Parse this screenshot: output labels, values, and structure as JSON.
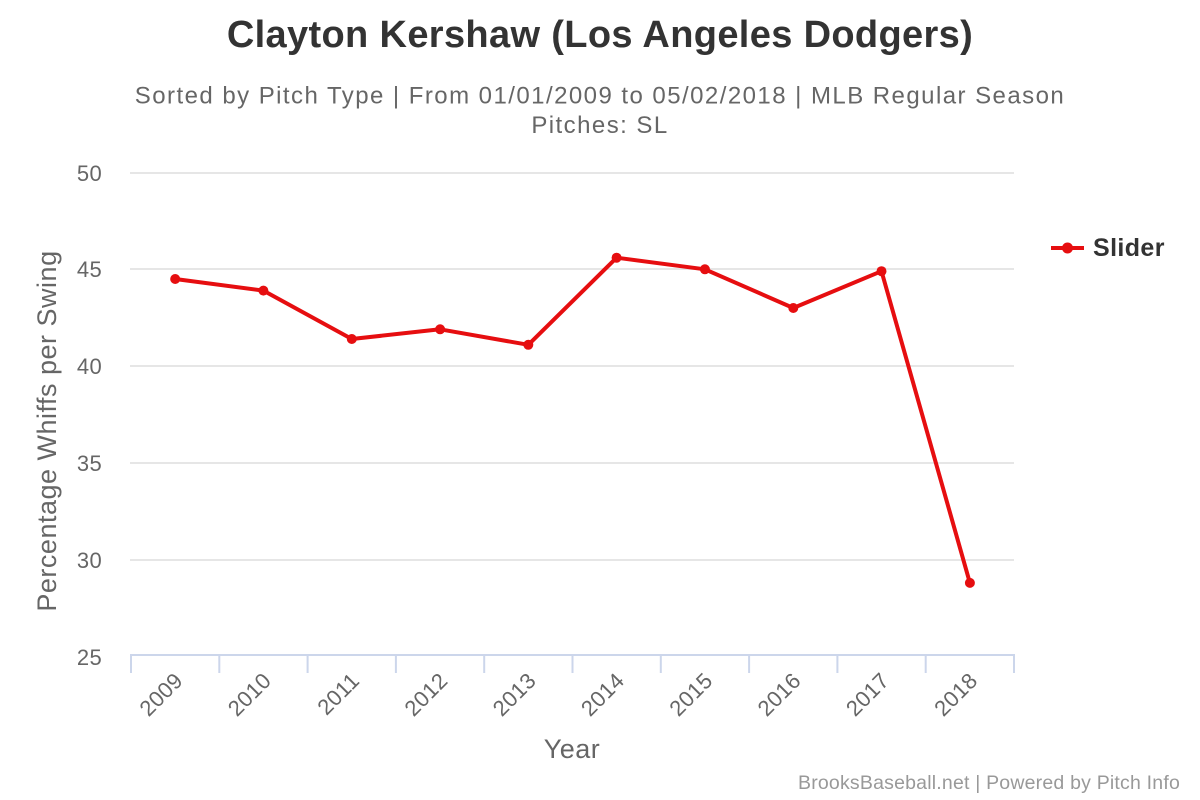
{
  "chart_data": {
    "type": "line",
    "title": "Clayton Kershaw (Los Angeles Dodgers)",
    "subtitle_line1": "Sorted by Pitch Type | From 01/01/2009 to 05/02/2018 | MLB Regular Season",
    "subtitle_line2": "Pitches: SL",
    "xlabel": "Year",
    "ylabel": "Percentage Whiffs per Swing",
    "categories": [
      "2009",
      "2010",
      "2011",
      "2012",
      "2013",
      "2014",
      "2015",
      "2016",
      "2017",
      "2018"
    ],
    "series": [
      {
        "name": "Slider",
        "values": [
          44.5,
          43.9,
          41.4,
          41.9,
          41.1,
          45.6,
          45.0,
          43.0,
          44.9,
          28.8
        ]
      }
    ],
    "ylim": [
      25,
      50
    ],
    "yticks": [
      25,
      30,
      35,
      40,
      45,
      50
    ],
    "grid": "horizontal-only",
    "legend_position": "right",
    "legend_entries": [
      "Slider"
    ]
  },
  "footer": {
    "credits": "BrooksBaseball.net | Powered by Pitch Info"
  },
  "colors": {
    "background": "#ffffff",
    "title_text": "#333333",
    "subtitle_text": "#666666",
    "tick_label_text": "#666666",
    "axis_title_text": "#666666",
    "grid_line": "#e6e6e6",
    "axis_line": "#ccd6eb",
    "series_slider": "#e60e10",
    "legend_text": "#333333",
    "credits_text": "#999999"
  }
}
